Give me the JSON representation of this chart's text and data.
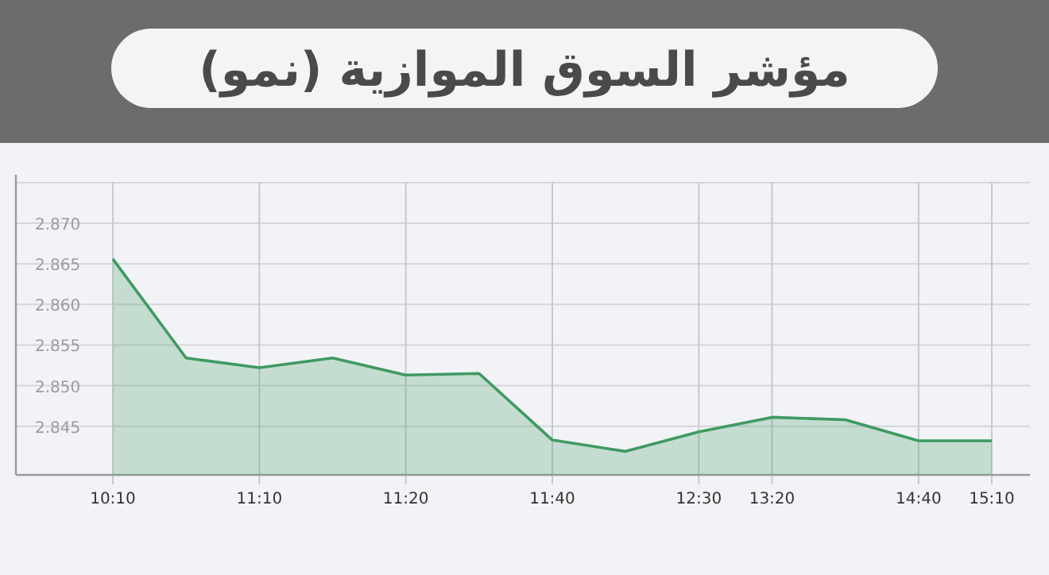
{
  "chart_data": {
    "type": "area",
    "title": "مؤشر السوق الموازية (نمو)",
    "categories": [
      "10:10",
      null,
      "11:10",
      null,
      "11:20",
      null,
      "11:40",
      null,
      "12:30",
      "13:20",
      null,
      "14:40",
      "15:10"
    ],
    "series": [
      {
        "color": "#3f9a62",
        "values": [
          2.8656,
          2.8534,
          2.8522,
          2.8534,
          2.8513,
          2.8515,
          2.8433,
          2.8419,
          2.8443,
          2.8461,
          2.8458,
          2.8432,
          2.8432
        ]
      }
    ],
    "ylim": [
      2.839,
      2.875
    ],
    "yticks": [
      2.845,
      {
        "value": 2.85,
        "label": "2.850"
      },
      2.855,
      {
        "value": 2.86,
        "label": "2.860"
      },
      2.865,
      {
        "value": 2.87,
        "label": "2.870"
      }
    ],
    "grid": true
  }
}
